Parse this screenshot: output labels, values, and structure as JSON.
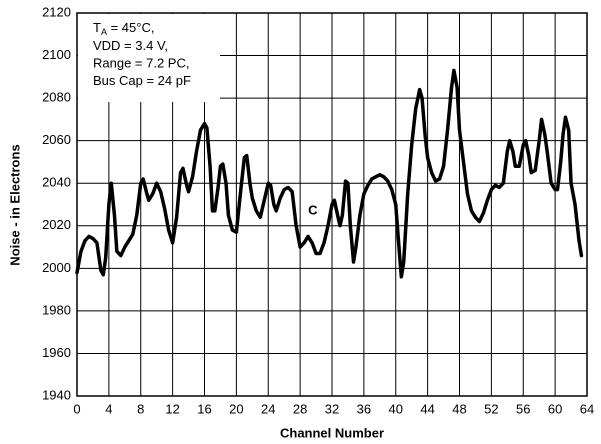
{
  "chart_data": {
    "type": "line",
    "x_label": "Channel Number",
    "y_label": "Noise - in Electrons",
    "annotation_lines": [
      {
        "main": "T",
        "sub": "A",
        "rest": " = 45°C,"
      },
      "VDD = 3.4 V,",
      "Range = 7.2 PC,",
      "Bus Cap = 24 pF"
    ],
    "curve_label": "C",
    "xlim": [
      0,
      64
    ],
    "ylim": [
      1940,
      2120
    ],
    "xticks": [
      0,
      4,
      8,
      12,
      16,
      20,
      24,
      28,
      32,
      36,
      40,
      44,
      48,
      52,
      56,
      60,
      64
    ],
    "yticks": [
      1940,
      1960,
      1980,
      2000,
      2020,
      2040,
      2060,
      2080,
      2100,
      2120
    ],
    "grid": true,
    "series": [
      {
        "color": "#000000",
        "x": [
          0,
          0.5,
          1,
          1.5,
          2,
          2.5,
          3,
          3.3,
          3.6,
          4,
          4.3,
          4.7,
          5,
          5.5,
          6,
          6.5,
          7,
          7.5,
          8,
          8.3,
          8.7,
          9,
          9.5,
          10,
          10.5,
          11,
          11.5,
          12,
          12.5,
          13,
          13.3,
          13.7,
          14,
          14.5,
          15,
          15.5,
          16,
          16.3,
          16.7,
          17,
          17.3,
          17.7,
          18,
          18.3,
          18.7,
          19,
          19.5,
          20,
          20.5,
          21,
          21.3,
          21.7,
          22,
          22.5,
          23,
          23.5,
          24,
          24.3,
          24.7,
          25,
          25.5,
          26,
          26.5,
          27,
          27.5,
          28,
          28.5,
          29,
          29.5,
          30,
          30.5,
          31,
          31.5,
          32,
          32.3,
          32.7,
          33,
          33.3,
          33.7,
          34,
          34.3,
          34.7,
          35,
          35.5,
          36,
          36.5,
          37,
          37.5,
          38,
          38.5,
          39,
          39.5,
          40,
          40.3,
          40.7,
          41,
          41.5,
          42,
          42.5,
          43,
          43.3,
          43.7,
          44,
          44.5,
          45,
          45.5,
          46,
          46.5,
          47,
          47.3,
          47.7,
          48,
          48.5,
          49,
          49.5,
          50,
          50.5,
          51,
          51.5,
          52,
          52.5,
          53,
          53.5,
          54,
          54.3,
          54.7,
          55,
          55.5,
          56,
          56.3,
          56.7,
          57,
          57.5,
          58,
          58.3,
          58.7,
          59,
          59.5,
          60,
          60.3,
          60.7,
          61,
          61.3,
          61.7,
          62,
          62.5,
          63,
          63.3
        ],
        "values": [
          1998,
          2008,
          2013,
          2015,
          2014,
          2012,
          1999,
          1997,
          2005,
          2030,
          2040,
          2025,
          2008,
          2006,
          2010,
          2013,
          2016,
          2025,
          2040,
          2042,
          2036,
          2032,
          2035,
          2040,
          2036,
          2028,
          2018,
          2012,
          2024,
          2045,
          2047,
          2040,
          2036,
          2043,
          2055,
          2065,
          2068,
          2066,
          2048,
          2027,
          2027,
          2038,
          2048,
          2049,
          2040,
          2025,
          2018,
          2017,
          2035,
          2052,
          2053,
          2040,
          2033,
          2027,
          2024,
          2032,
          2040,
          2039,
          2030,
          2027,
          2033,
          2037,
          2038,
          2036,
          2020,
          2010,
          2012,
          2015,
          2012,
          2007,
          2007,
          2012,
          2020,
          2030,
          2032,
          2025,
          2020,
          2025,
          2041,
          2040,
          2020,
          2003,
          2010,
          2025,
          2035,
          2039,
          2042,
          2043,
          2044,
          2043,
          2041,
          2037,
          2030,
          2015,
          1996,
          2003,
          2035,
          2058,
          2075,
          2084,
          2080,
          2062,
          2052,
          2045,
          2041,
          2042,
          2048,
          2065,
          2085,
          2093,
          2085,
          2065,
          2050,
          2035,
          2027,
          2024,
          2022,
          2026,
          2032,
          2037,
          2039,
          2038,
          2040,
          2055,
          2060,
          2055,
          2048,
          2048,
          2058,
          2060,
          2053,
          2045,
          2046,
          2060,
          2070,
          2063,
          2055,
          2040,
          2037,
          2037,
          2050,
          2063,
          2071,
          2065,
          2040,
          2030,
          2013,
          2006
        ]
      }
    ]
  }
}
